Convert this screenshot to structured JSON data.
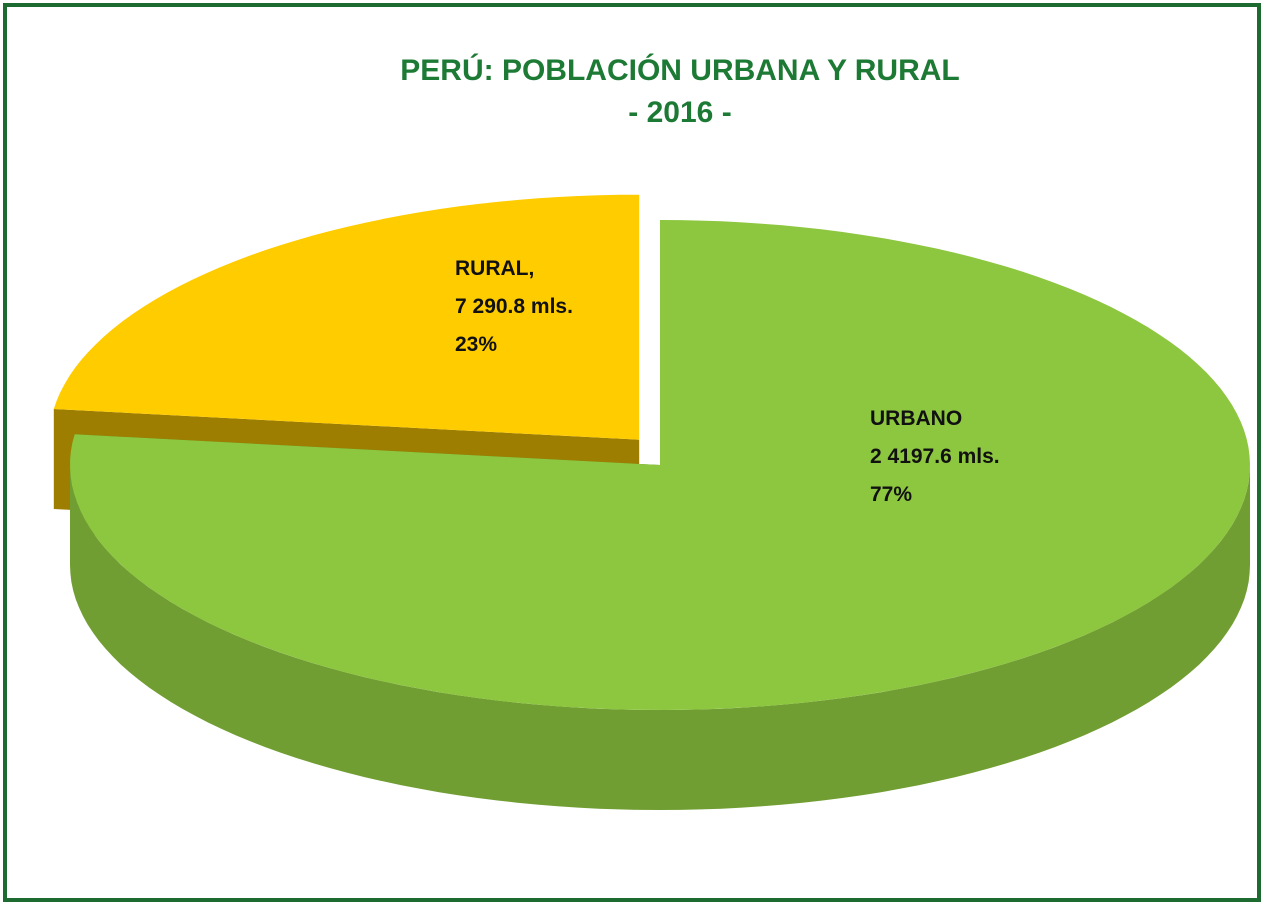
{
  "chart_data": {
    "type": "pie",
    "title": "PERÚ:  POBLACIÓN URBANA Y RURAL",
    "subtitle": "- 2016 -",
    "categories": [
      "RURAL,",
      "URBANO"
    ],
    "amounts": [
      "7 290.8  mls.",
      "2 4197.6 mls."
    ],
    "values": [
      23,
      77
    ],
    "value_labels": [
      "23%",
      "77%"
    ],
    "colors": [
      "#ffcc00",
      "#8dc63f"
    ]
  }
}
